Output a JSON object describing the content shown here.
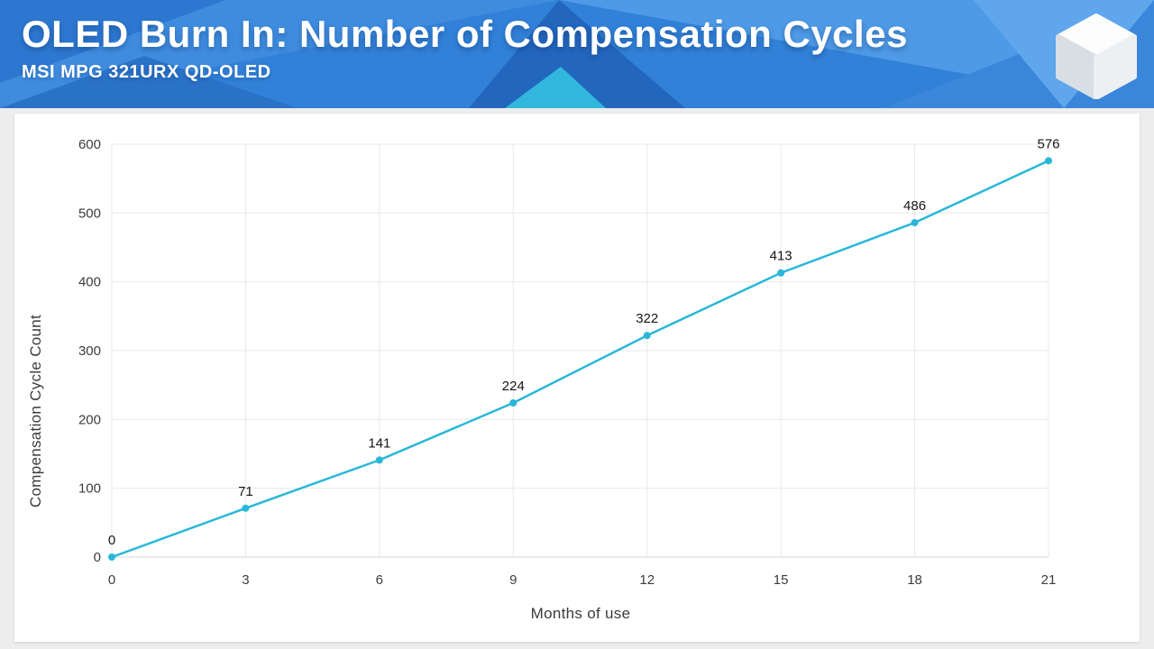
{
  "header": {
    "title": "OLED Burn In: Number of Compensation Cycles",
    "subtitle": "MSI MPG 321URX QD-OLED",
    "logo_icon": "cube-icon",
    "colors": {
      "base_blue": "#3181d8",
      "accent_cyan": "#31b7dd",
      "text": "#ffffff"
    }
  },
  "chart_data": {
    "type": "line",
    "x": [
      0,
      3,
      6,
      9,
      12,
      15,
      18,
      21
    ],
    "series": [
      {
        "name": "Compensation Cycle Count",
        "values": [
          0,
          71,
          141,
          224,
          322,
          413,
          486,
          576
        ]
      }
    ],
    "data_labels": [
      "0",
      "71",
      "141",
      "224",
      "322",
      "413",
      "486",
      "576"
    ],
    "xlabel": "Months of use",
    "ylabel": "Compensation Cycle Count",
    "x_ticks": [
      "0",
      "3",
      "6",
      "9",
      "12",
      "15",
      "18",
      "21"
    ],
    "y_ticks": [
      "0",
      "100",
      "200",
      "300",
      "400",
      "500",
      "600"
    ],
    "xlim": [
      0,
      21
    ],
    "ylim": [
      0,
      600
    ],
    "grid": true,
    "legend": false,
    "line_color": "#29b7d8",
    "marker": "circle",
    "background": "#ffffff"
  }
}
